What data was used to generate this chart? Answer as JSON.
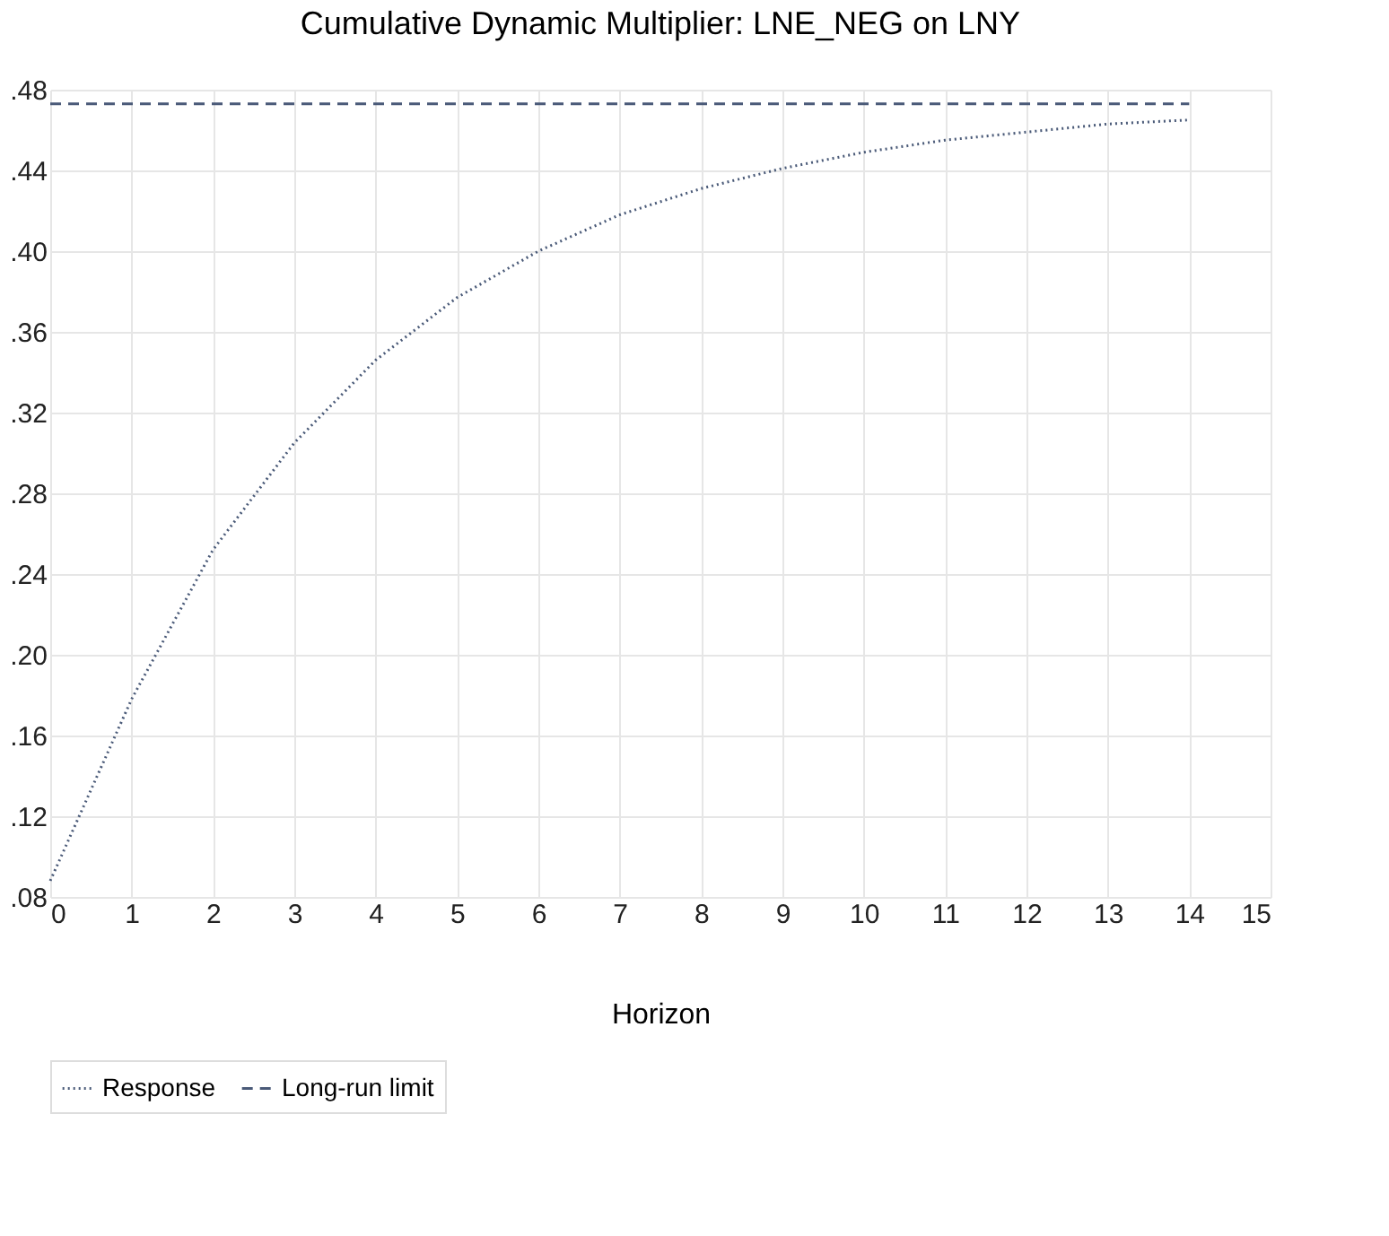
{
  "chart_data": {
    "type": "line",
    "title": "Cumulative Dynamic Multiplier: LNE_NEG on LNY",
    "xlabel": "Horizon",
    "x": [
      0,
      1,
      2,
      3,
      4,
      5,
      6,
      7,
      8,
      9,
      10,
      11,
      12,
      13,
      14
    ],
    "series": [
      {
        "name": "Response",
        "color": "#4a5a78",
        "line_style": "dotted",
        "values": [
          0.088,
          0.178,
          0.252,
          0.305,
          0.346,
          0.377,
          0.4,
          0.418,
          0.431,
          0.441,
          0.449,
          0.455,
          0.459,
          0.463,
          0.465
        ]
      },
      {
        "name": "Long-run limit",
        "color": "#4a5a78",
        "line_style": "dashed",
        "values": [
          0.473,
          0.473,
          0.473,
          0.473,
          0.473,
          0.473,
          0.473,
          0.473,
          0.473,
          0.473,
          0.473,
          0.473,
          0.473,
          0.473,
          0.473
        ]
      }
    ],
    "xlim": [
      0,
      15
    ],
    "xticks": [
      0,
      1,
      2,
      3,
      4,
      5,
      6,
      7,
      8,
      9,
      10,
      11,
      12,
      13,
      14,
      15
    ],
    "ylim": [
      0.08,
      0.48
    ],
    "yticks": [
      {
        "value": 0.08,
        "label": ".08"
      },
      {
        "value": 0.12,
        "label": ".12"
      },
      {
        "value": 0.16,
        "label": ".16"
      },
      {
        "value": 0.2,
        "label": ".20"
      },
      {
        "value": 0.24,
        "label": ".24"
      },
      {
        "value": 0.28,
        "label": ".28"
      },
      {
        "value": 0.32,
        "label": ".32"
      },
      {
        "value": 0.36,
        "label": ".36"
      },
      {
        "value": 0.4,
        "label": ".40"
      },
      {
        "value": 0.44,
        "label": ".44"
      },
      {
        "value": 0.48,
        "label": ".48"
      }
    ],
    "grid": true,
    "legend": "bottom",
    "marker": "none"
  }
}
